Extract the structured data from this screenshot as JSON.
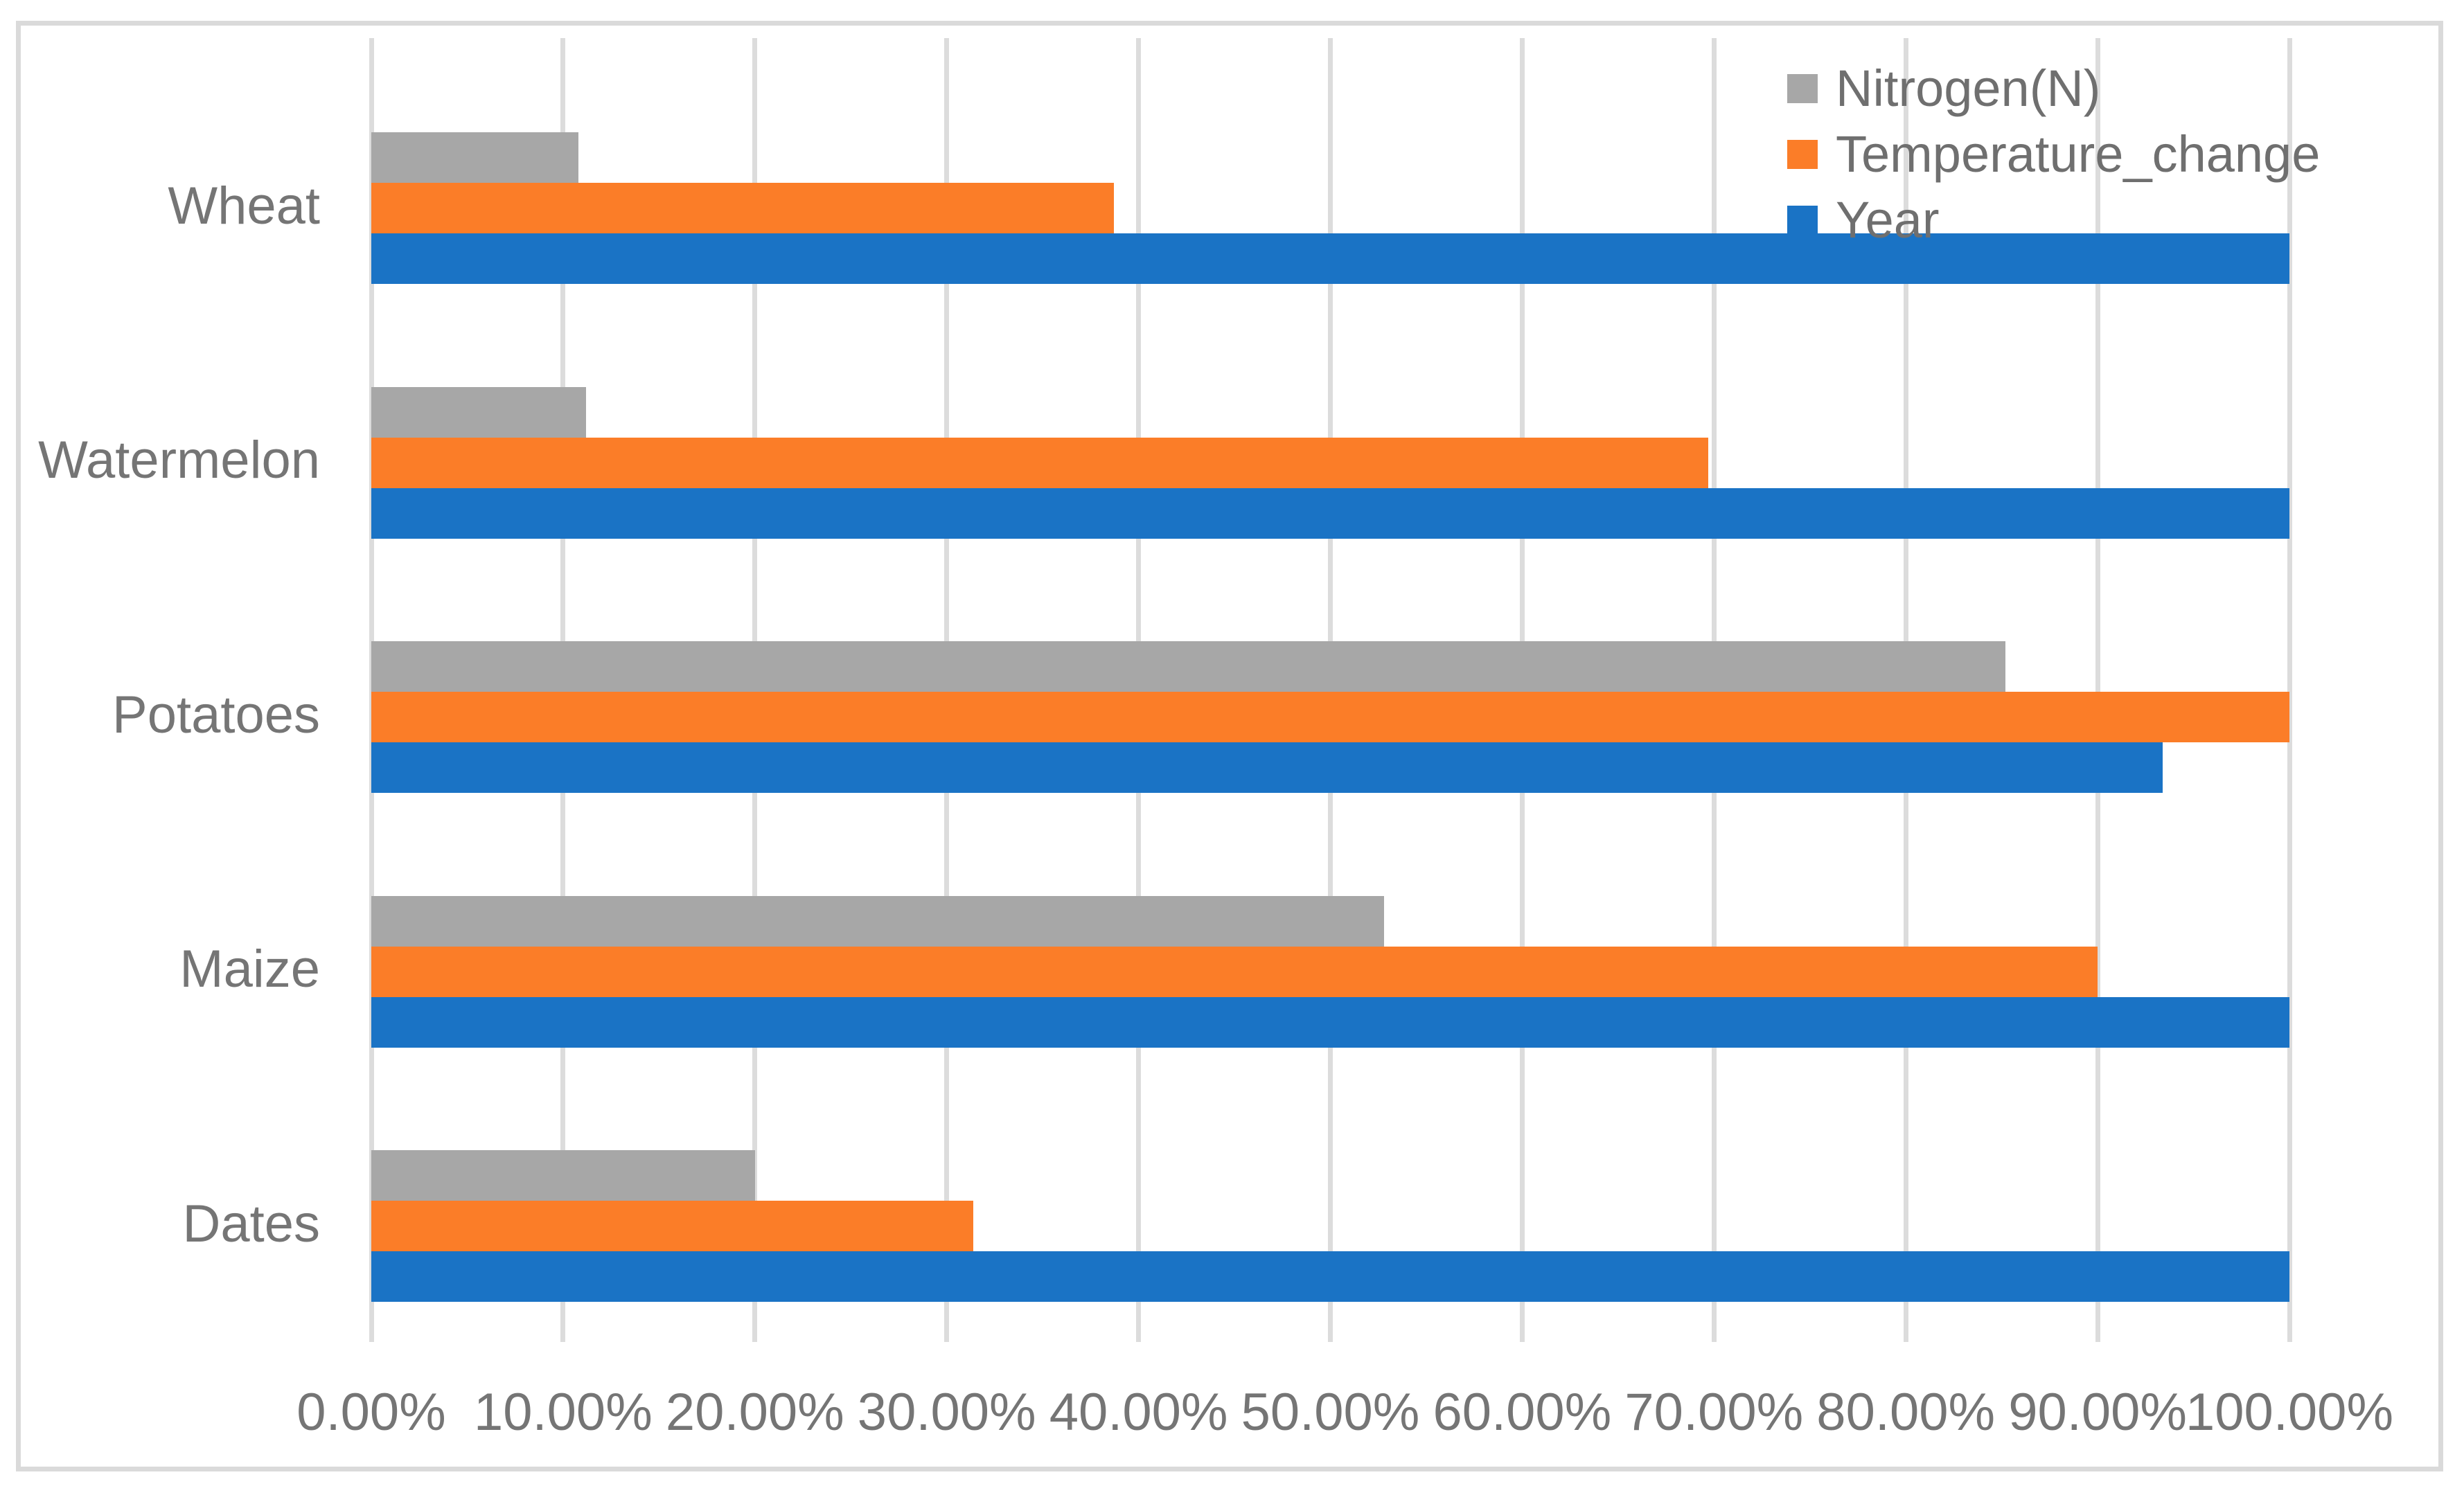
{
  "chart_data": {
    "type": "bar",
    "orientation": "horizontal",
    "title": "",
    "xlabel": "",
    "ylabel": "",
    "categories": [
      "Wheat",
      "Watermelon",
      "Potatoes",
      "Maize",
      "Dates"
    ],
    "series": [
      {
        "name": "Nitrogen(N)",
        "color": "#A7A7A7",
        "values": [
          10.8,
          11.2,
          85.2,
          52.8,
          20.0
        ]
      },
      {
        "name": "Temperature_change",
        "color": "#FB7D28",
        "values": [
          38.7,
          69.7,
          100.0,
          90.0,
          31.4
        ]
      },
      {
        "name": "Year",
        "color": "#1A73C5",
        "values": [
          100.0,
          100.0,
          93.4,
          100.0,
          100.0
        ]
      }
    ],
    "x_axis": {
      "min": 0,
      "max": 100,
      "step": 10,
      "unit": "%",
      "tick_labels": [
        "0.00%",
        "10.00%",
        "20.00%",
        "30.00%",
        "40.00%",
        "50.00%",
        "60.00%",
        "70.00%",
        "80.00%",
        "90.00%",
        "100.00%"
      ]
    },
    "legend": {
      "position": "top-right",
      "entries": [
        "Nitrogen(N)",
        "Temperature_change",
        "Year"
      ]
    },
    "grid": true,
    "bar_order_top_to_bottom": [
      "Nitrogen(N)",
      "Temperature_change",
      "Year"
    ]
  },
  "colors": {
    "background": "#FFFFFF",
    "frame_border": "#DADADA",
    "gridline": "#DCDCDC",
    "axis_text": "#757575",
    "legend_text": "#6F6F6F"
  }
}
